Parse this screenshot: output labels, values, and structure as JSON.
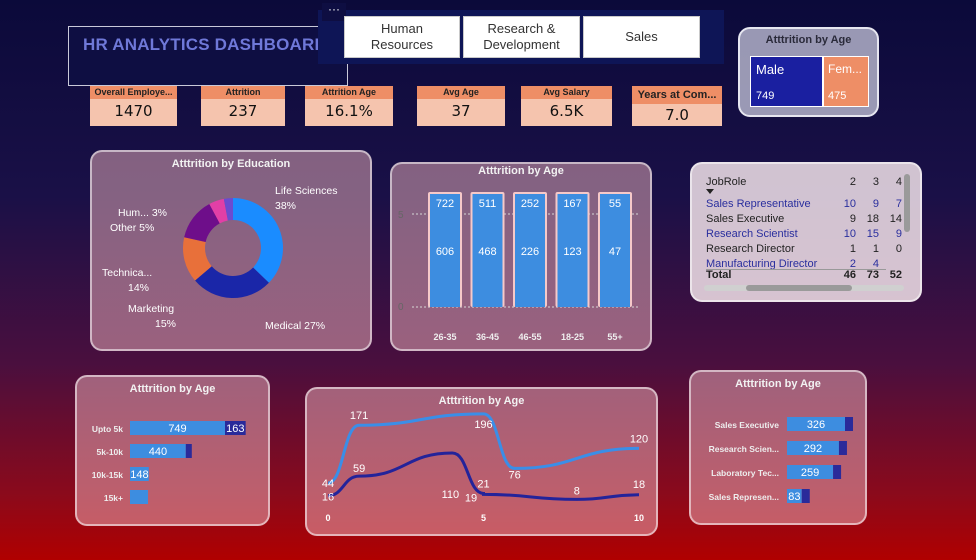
{
  "title": "HR ANALYTICS DASHBOARD",
  "menu_dots": "···",
  "tabs": [
    {
      "label": "Human\nResources"
    },
    {
      "label": "Research &\nDevelopment"
    },
    {
      "label": "Sales"
    }
  ],
  "kpis": [
    {
      "label": "Overall Employe...",
      "value": "1470"
    },
    {
      "label": "Attrition",
      "value": "237"
    },
    {
      "label": "Attrition Age",
      "value": "16.1%"
    },
    {
      "label": "Avg Age",
      "value": "37"
    },
    {
      "label": "Avg Salary",
      "value": "6.5K"
    },
    {
      "label": "Years at Com...",
      "value": "7.0"
    }
  ],
  "gender": {
    "title": "Atttrition by Age",
    "male_label": "Male",
    "male_value": "749",
    "female_label": "Fem...",
    "female_value": "475",
    "male_color": "#1a1fa0",
    "female_color": "#ee8e66"
  },
  "education": {
    "title": "Atttrition by Education",
    "labels": [
      {
        "name": "Life Sciences",
        "pct": "38%"
      },
      {
        "name": "Medical 27%"
      },
      {
        "name": "Marketing",
        "pct": "15%"
      },
      {
        "name": "Technica...",
        "pct": "14%"
      },
      {
        "name": "Other 5%"
      },
      {
        "name": "Hum... 3%"
      }
    ]
  },
  "age_bars": {
    "title": "Atttrition by Age",
    "axis_ticks": [
      "5",
      "0"
    ]
  },
  "jobrole": {
    "header": {
      "name": "JobRole",
      "c2": "2",
      "c3": "3",
      "c4": "4"
    },
    "rows": [
      {
        "name": "Sales Representative",
        "c2": "10",
        "c3": "9",
        "c4": "7",
        "link": true
      },
      {
        "name": "Sales Executive",
        "c2": "9",
        "c3": "18",
        "c4": "14",
        "link": false
      },
      {
        "name": "Research Scientist",
        "c2": "10",
        "c3": "15",
        "c4": "9",
        "link": true
      },
      {
        "name": "Research Director",
        "c2": "1",
        "c3": "1",
        "c4": "0",
        "link": false
      },
      {
        "name": "Manufacturing Director",
        "c2": "2",
        "c3": "4",
        "c4": "2",
        "link": true
      }
    ],
    "total": {
      "name": "Total",
      "c2": "46",
      "c3": "73",
      "c4": "52"
    }
  },
  "salary": {
    "title": "Atttrition by Age"
  },
  "trend": {
    "title": "Atttrition by Age"
  },
  "roles": {
    "title": "Atttrition by Age"
  },
  "chart_data": [
    {
      "type": "pie",
      "title": "Atttrition by Education",
      "categories": [
        "Life Sciences",
        "Medical",
        "Marketing",
        "Technica...",
        "Other",
        "Hum..."
      ],
      "values": [
        38,
        27,
        15,
        14,
        5,
        3
      ],
      "colors": [
        "#1a8cff",
        "#1a26a8",
        "#e8703a",
        "#6e0e8a",
        "#e23fa6",
        "#6b4bd0"
      ]
    },
    {
      "type": "bar",
      "title": "Atttrition by Age",
      "categories": [
        "26-35",
        "36-45",
        "46-55",
        "18-25",
        "55+"
      ],
      "series": [
        {
          "values": [
            722,
            511,
            252,
            167,
            55
          ]
        },
        {
          "values": [
            606,
            468,
            226,
            123,
            47
          ]
        }
      ],
      "yticks": [
        "5",
        "0"
      ]
    },
    {
      "type": "bar",
      "title": "Atttrition by Age",
      "categories": [
        "Upto 5k",
        "5k-10k",
        "10k-15k",
        "15k+"
      ],
      "series": [
        {
          "values": [
            749,
            440,
            148,
            null
          ]
        },
        {
          "values": [
            163,
            null,
            null,
            null
          ]
        }
      ]
    },
    {
      "type": "line",
      "title": "Atttrition by Age",
      "xticks": [
        "0",
        "5",
        "10"
      ],
      "series": [
        {
          "color": "#3a8ee8",
          "points": [
            [
              0,
              44
            ],
            [
              1,
              171
            ],
            [
              5,
              196
            ],
            [
              6,
              76
            ],
            [
              10,
              120
            ]
          ]
        },
        {
          "color": "#23239a",
          "points": [
            [
              0,
              16
            ],
            [
              1,
              59
            ],
            [
              4,
              110
            ],
            [
              5,
              21
            ],
            [
              5,
              19
            ],
            [
              8,
              8
            ],
            [
              10,
              18
            ]
          ]
        }
      ]
    },
    {
      "type": "bar",
      "title": "Atttrition by Age",
      "categories": [
        "Sales Executive",
        "Research Scien...",
        "Laboratory Tec...",
        "Sales Represen..."
      ],
      "values": [
        326,
        292,
        259,
        83
      ]
    }
  ]
}
